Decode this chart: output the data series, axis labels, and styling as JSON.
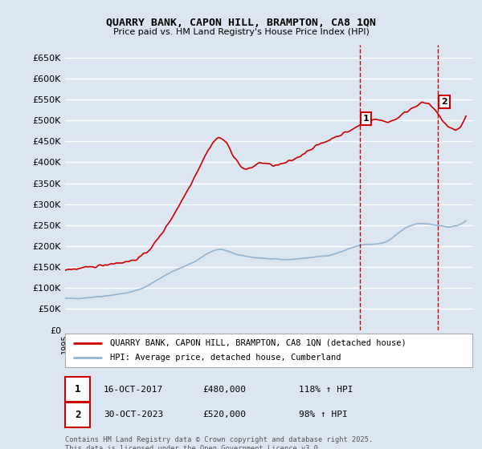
{
  "title": "QUARRY BANK, CAPON HILL, BRAMPTON, CA8 1QN",
  "subtitle": "Price paid vs. HM Land Registry's House Price Index (HPI)",
  "ylim": [
    0,
    680000
  ],
  "yticks": [
    0,
    50000,
    100000,
    150000,
    200000,
    250000,
    300000,
    350000,
    400000,
    450000,
    500000,
    550000,
    600000,
    650000
  ],
  "xlim_start": 1995.0,
  "xlim_end": 2026.5,
  "background_color": "#dce6f1",
  "plot_bg_color": "#dce6f1",
  "grid_color": "#ffffff",
  "red_line_color": "#cc0000",
  "blue_line_color": "#92b4d0",
  "dashed_line_color": "#cc0000",
  "sale1_x": 2017.79,
  "sale1_y": 480000,
  "sale1_label": "1",
  "sale1_date": "16-OCT-2017",
  "sale1_price": "£480,000",
  "sale1_hpi": "118% ↑ HPI",
  "sale2_x": 2023.83,
  "sale2_y": 520000,
  "sale2_label": "2",
  "sale2_date": "30-OCT-2023",
  "sale2_price": "£520,000",
  "sale2_hpi": "98% ↑ HPI",
  "legend_line1": "QUARRY BANK, CAPON HILL, BRAMPTON, CA8 1QN (detached house)",
  "legend_line2": "HPI: Average price, detached house, Cumberland",
  "footer": "Contains HM Land Registry data © Crown copyright and database right 2025.\nThis data is licensed under the Open Government Licence v3.0.",
  "hpi_anchors_x": [
    1995,
    1997,
    1999,
    2001,
    2003,
    2005,
    2007,
    2008,
    2010,
    2012,
    2014,
    2016,
    2018,
    2020,
    2021,
    2022,
    2023,
    2024,
    2026
  ],
  "hpi_anchors_y": [
    75000,
    78000,
    85000,
    100000,
    135000,
    163000,
    192000,
    183000,
    172000,
    168000,
    173000,
    183000,
    203000,
    213000,
    237000,
    252000,
    253000,
    248000,
    260000
  ],
  "prop_anchors_x": [
    1995,
    1997,
    1999,
    2001,
    2003,
    2005,
    2006,
    2007,
    2008,
    2009,
    2010,
    2011,
    2012,
    2013,
    2014,
    2015,
    2016,
    2017,
    2018,
    2019,
    2020,
    2021,
    2022,
    2023,
    2024,
    2026
  ],
  "prop_anchors_y": [
    145000,
    150000,
    160000,
    178000,
    255000,
    365000,
    425000,
    458000,
    418000,
    383000,
    398000,
    393000,
    398000,
    412000,
    432000,
    447000,
    462000,
    475000,
    492000,
    502000,
    497000,
    512000,
    533000,
    540000,
    508000,
    510000
  ]
}
